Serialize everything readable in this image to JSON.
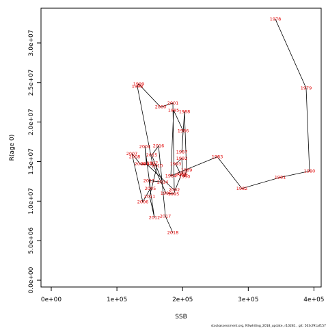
{
  "chart_data": {
    "type": "scatter",
    "x_label": "SSB",
    "y_label": "R(age 0)",
    "footer": "stockassessment.org, NSwhiting_2018_update, r10281 , git: 503cf91af157",
    "labels": [
      "1978",
      "1979",
      "1980",
      "1981",
      "1982",
      "1983",
      "1984",
      "1985",
      "1986",
      "1987",
      "1988",
      "1989",
      "1990",
      "1991",
      "1992",
      "1993",
      "1994",
      "1995",
      "1996",
      "1997",
      "1998",
      "1999",
      "2000",
      "2001",
      "2002",
      "2003",
      "2004",
      "2005",
      "2006",
      "2007",
      "2008",
      "2009",
      "2010",
      "2011",
      "2012",
      "2013",
      "2014",
      "2015",
      "2016",
      "2017",
      "2018"
    ],
    "x": [
      341300,
      388100,
      393300,
      348600,
      290300,
      252900,
      182100,
      186300,
      200800,
      198800,
      202900,
      206000,
      202900,
      199800,
      198800,
      189400,
      197700,
      186300,
      174800,
      154000,
      131100,
      133200,
      166500,
      185200,
      187300,
      145000,
      142600,
      150900,
      139400,
      122800,
      127000,
      135300,
      161300,
      149800,
      157100,
      148800,
      169600,
      153000,
      163400,
      173800,
      185200
    ],
    "y": [
      33000000,
      24300000,
      13800000,
      13000000,
      11600000,
      15600000,
      13200000,
      21500000,
      18900000,
      16200000,
      21300000,
      13900000,
      13100000,
      13500000,
      15400000,
      14700000,
      13300000,
      10900000,
      11000000,
      14800000,
      24500000,
      24800000,
      21900000,
      22400000,
      11400000,
      14700000,
      16900000,
      11600000,
      9900000,
      16000000,
      15600000,
      14700000,
      14500000,
      10600000,
      7900000,
      12600000,
      12400000,
      15800000,
      17000000,
      8100000,
      6000000
    ],
    "color": "#e00000",
    "line_color": "#000000",
    "xlim": [
      -15600,
      411000
    ],
    "ylim": [
      -860000,
      34400000
    ],
    "xticks": [
      {
        "value": 0,
        "label": "0e+00"
      },
      {
        "value": 100000,
        "label": "1e+05"
      },
      {
        "value": 200000,
        "label": "2e+05"
      },
      {
        "value": 300000,
        "label": "3e+05"
      },
      {
        "value": 400000,
        "label": "4e+05"
      }
    ],
    "yticks": [
      {
        "value": 0,
        "label": "0.0e+00"
      },
      {
        "value": 5000000,
        "label": "5.0e+06"
      },
      {
        "value": 10000000,
        "label": "1.0e+07"
      },
      {
        "value": 15000000,
        "label": "1.5e+07"
      },
      {
        "value": 20000000,
        "label": "2.0e+07"
      },
      {
        "value": 25000000,
        "label": "2.5e+07"
      },
      {
        "value": 30000000,
        "label": "3.0e+07"
      }
    ]
  }
}
